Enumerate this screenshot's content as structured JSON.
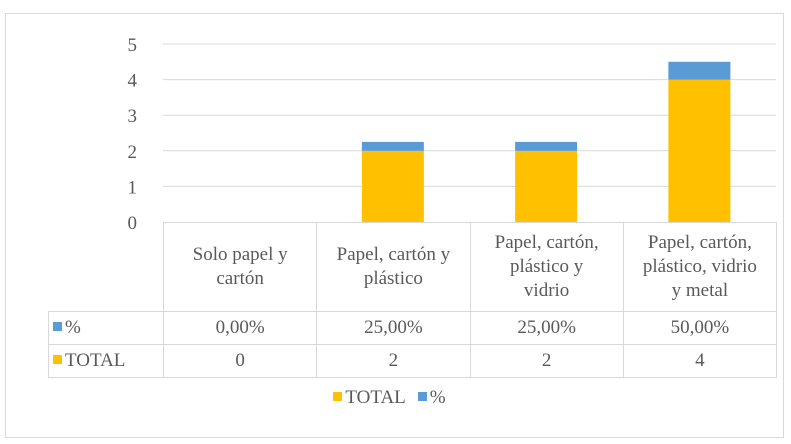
{
  "chart_data": {
    "type": "bar",
    "stacked": true,
    "categories": [
      [
        "Solo papel y",
        "cartón"
      ],
      [
        "Papel, cartón y",
        "plástico"
      ],
      [
        "Papel, cartón,",
        "plástico y",
        "vidrio"
      ],
      [
        "Papel, cartón,",
        "plástico, vidrio",
        "y metal"
      ]
    ],
    "series": [
      {
        "name": "TOTAL",
        "values": [
          0,
          2,
          2,
          4
        ],
        "display": [
          "0",
          "2",
          "2",
          "4"
        ],
        "color": "#ffc000"
      },
      {
        "name": "%",
        "values": [
          0.0,
          0.25,
          0.25,
          0.5
        ],
        "display": [
          "0,00%",
          "25,00%",
          "25,00%",
          "50,00%"
        ],
        "color": "#5b9bd5"
      }
    ],
    "yticks": [
      "0",
      "1",
      "2",
      "3",
      "4",
      "5"
    ],
    "ylim": [
      0,
      5
    ],
    "grid": true,
    "data_table": true,
    "legend": {
      "placement": "bottom",
      "order": [
        "TOTAL",
        "%"
      ]
    }
  }
}
